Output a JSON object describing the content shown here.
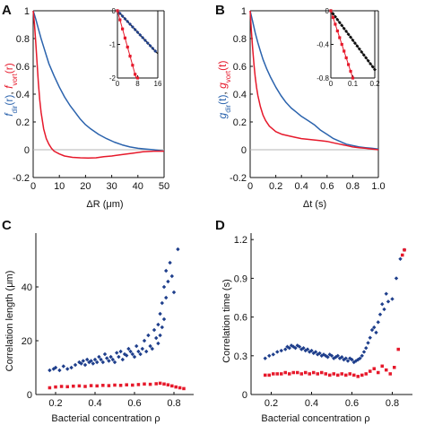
{
  "colors": {
    "blue": "#2b63ad",
    "red": "#e6192b",
    "navy": "#1f3f8c",
    "black": "#111111",
    "zero": "#b5b5b5"
  },
  "chart_data": [
    {
      "panel": "A",
      "type": "line",
      "xlabel": "ΔR (μm)",
      "ylabel_blue": "f_dir(r)",
      "ylabel_red": "f_vort(r)",
      "ylabel_blue_main": "f",
      "ylabel_blue_sub": "dir",
      "ylabel_blue_arg": "(r)",
      "ylabel_sep": ", ",
      "ylabel_red_main": "f",
      "ylabel_red_sub": "vort",
      "ylabel_red_arg": "(r)",
      "xlim": [
        0,
        50
      ],
      "ylim": [
        -0.2,
        1.0
      ],
      "xticks": [
        "0",
        "10",
        "20",
        "30",
        "40",
        "50"
      ],
      "yticks": [
        "-0.2",
        "0",
        "0.2",
        "0.4",
        "0.6",
        "0.8",
        "1"
      ],
      "series": [
        {
          "color": "blue",
          "x": [
            0,
            1,
            2,
            3,
            4,
            5,
            6,
            8,
            10,
            12,
            14,
            16,
            18,
            20,
            22,
            25,
            28,
            31,
            34,
            37,
            40,
            43,
            46,
            48,
            50
          ],
          "y": [
            1.0,
            0.94,
            0.87,
            0.8,
            0.74,
            0.68,
            0.62,
            0.53,
            0.45,
            0.38,
            0.32,
            0.27,
            0.22,
            0.18,
            0.15,
            0.11,
            0.08,
            0.055,
            0.035,
            0.02,
            0.01,
            0.005,
            0.0,
            -0.005,
            -0.01
          ]
        },
        {
          "color": "red",
          "x": [
            0,
            0.5,
            1,
            1.5,
            2,
            2.5,
            3,
            4,
            5,
            6,
            7,
            8,
            10,
            12,
            15,
            18,
            21,
            24,
            27,
            30,
            34,
            38,
            42,
            46,
            50
          ],
          "y": [
            1.0,
            0.9,
            0.77,
            0.62,
            0.48,
            0.36,
            0.27,
            0.15,
            0.08,
            0.04,
            0.01,
            -0.01,
            -0.03,
            -0.045,
            -0.055,
            -0.058,
            -0.06,
            -0.058,
            -0.05,
            -0.045,
            -0.035,
            -0.025,
            -0.015,
            -0.01,
            -0.01
          ]
        }
      ],
      "inset": {
        "xlim": [
          0,
          16
        ],
        "ylim": [
          -2,
          0
        ],
        "xticks": [
          "0",
          "8",
          "16"
        ],
        "yticks": [
          "-2",
          "-1",
          "0"
        ],
        "series": [
          {
            "color": "navy",
            "marker": "diamond",
            "x": [
              0,
              1,
              2,
              3,
              4,
              5,
              6,
              7,
              8,
              9,
              10,
              11,
              12,
              13,
              14,
              15
            ],
            "y": [
              0.0,
              -0.08,
              -0.16,
              -0.24,
              -0.32,
              -0.4,
              -0.48,
              -0.56,
              -0.64,
              -0.72,
              -0.8,
              -0.88,
              -0.96,
              -1.04,
              -1.12,
              -1.2
            ]
          },
          {
            "color": "red",
            "marker": "square",
            "x": [
              0,
              1,
              2,
              3,
              4,
              5,
              6,
              7,
              8
            ],
            "y": [
              0.0,
              -0.27,
              -0.54,
              -0.81,
              -1.08,
              -1.35,
              -1.62,
              -1.89,
              -2.0
            ]
          }
        ],
        "fit_lines": [
          {
            "color": "black",
            "x": [
              0,
              16
            ],
            "y": [
              0.0,
              -1.28
            ]
          },
          {
            "color": "red",
            "x": [
              0,
              7.4
            ],
            "y": [
              0.0,
              -2.0
            ]
          }
        ]
      }
    },
    {
      "panel": "B",
      "type": "line",
      "xlabel": "Δt (s)",
      "ylabel_blue": "g_dir(t)",
      "ylabel_red": "g_vort(t)",
      "ylabel_blue_main": "g",
      "ylabel_blue_sub": "dir",
      "ylabel_blue_arg": "(t)",
      "ylabel_sep": ", ",
      "ylabel_red_main": "g",
      "ylabel_red_sub": "vort",
      "ylabel_red_arg": "(t)",
      "xlim": [
        0,
        1.0
      ],
      "ylim": [
        -0.2,
        1.0
      ],
      "xticks": [
        "0",
        "0.2",
        "0.4",
        "0.6",
        "0.8",
        "1.0"
      ],
      "yticks": [
        "-0.2",
        "0",
        "0.2",
        "0.4",
        "0.6",
        "0.8",
        "1"
      ],
      "series": [
        {
          "color": "blue",
          "x": [
            0,
            0.02,
            0.04,
            0.06,
            0.08,
            0.1,
            0.13,
            0.16,
            0.2,
            0.24,
            0.28,
            0.32,
            0.36,
            0.4,
            0.45,
            0.5,
            0.55,
            0.6,
            0.65,
            0.7,
            0.75,
            0.8,
            0.85,
            0.9,
            0.95,
            1.0
          ],
          "y": [
            1.0,
            0.92,
            0.84,
            0.77,
            0.71,
            0.65,
            0.58,
            0.52,
            0.45,
            0.39,
            0.34,
            0.3,
            0.27,
            0.24,
            0.21,
            0.18,
            0.14,
            0.11,
            0.08,
            0.06,
            0.04,
            0.03,
            0.02,
            0.015,
            0.01,
            0.005
          ]
        },
        {
          "color": "red",
          "x": [
            0,
            0.01,
            0.02,
            0.03,
            0.04,
            0.05,
            0.06,
            0.08,
            0.1,
            0.12,
            0.15,
            0.2,
            0.25,
            0.3,
            0.35,
            0.4,
            0.45,
            0.5,
            0.55,
            0.6,
            0.65,
            0.7,
            0.75,
            0.8,
            0.85,
            0.9,
            0.95,
            1.0
          ],
          "y": [
            1.0,
            0.85,
            0.72,
            0.61,
            0.52,
            0.45,
            0.39,
            0.31,
            0.25,
            0.21,
            0.17,
            0.13,
            0.11,
            0.1,
            0.09,
            0.08,
            0.075,
            0.07,
            0.065,
            0.06,
            0.05,
            0.04,
            0.03,
            0.02,
            0.015,
            0.01,
            0.005,
            0.0
          ]
        }
      ],
      "inset": {
        "xlim": [
          0,
          0.2
        ],
        "ylim": [
          -0.8,
          0
        ],
        "xticks": [
          "0",
          "0.1",
          "0.2"
        ],
        "yticks": [
          "-0.8",
          "-0.4",
          "0"
        ],
        "series": [
          {
            "color": "black",
            "marker": "diamond",
            "x": [
              0,
              0.01,
              0.02,
              0.03,
              0.04,
              0.05,
              0.06,
              0.07,
              0.08,
              0.09,
              0.1,
              0.11,
              0.12,
              0.13,
              0.14,
              0.15,
              0.16,
              0.17,
              0.18,
              0.19,
              0.2
            ],
            "y": [
              0.0,
              -0.035,
              -0.07,
              -0.105,
              -0.14,
              -0.175,
              -0.21,
              -0.245,
              -0.28,
              -0.315,
              -0.35,
              -0.385,
              -0.42,
              -0.455,
              -0.49,
              -0.525,
              -0.56,
              -0.595,
              -0.63,
              -0.665,
              -0.7
            ]
          },
          {
            "color": "red",
            "marker": "square",
            "x": [
              0,
              0.01,
              0.02,
              0.03,
              0.04,
              0.05,
              0.06,
              0.07,
              0.08,
              0.09,
              0.1
            ],
            "y": [
              0.0,
              -0.08,
              -0.16,
              -0.24,
              -0.32,
              -0.4,
              -0.48,
              -0.56,
              -0.64,
              -0.72,
              -0.8
            ]
          }
        ],
        "fit_lines": [
          {
            "color": "black",
            "x": [
              0,
              0.2
            ],
            "y": [
              0.0,
              -0.7
            ]
          },
          {
            "color": "red",
            "x": [
              0,
              0.1
            ],
            "y": [
              0.0,
              -0.8
            ]
          }
        ]
      }
    },
    {
      "panel": "C",
      "type": "scatter",
      "xlabel": "Bacterial concentration ρ",
      "ylabel": "Correlation length (μm)",
      "xlim": [
        0.1,
        0.9
      ],
      "ylim": [
        0,
        60
      ],
      "xticks": [
        "0.2",
        "0.4",
        "0.6",
        "0.8"
      ],
      "yticks": [
        "0",
        "20",
        "40"
      ],
      "series": [
        {
          "color": "navy",
          "marker": "diamond",
          "x": [
            0.17,
            0.19,
            0.2,
            0.22,
            0.24,
            0.26,
            0.28,
            0.3,
            0.32,
            0.33,
            0.34,
            0.35,
            0.36,
            0.37,
            0.38,
            0.39,
            0.4,
            0.41,
            0.42,
            0.43,
            0.44,
            0.45,
            0.46,
            0.47,
            0.48,
            0.49,
            0.5,
            0.51,
            0.52,
            0.53,
            0.54,
            0.55,
            0.56,
            0.57,
            0.58,
            0.59,
            0.6,
            0.61,
            0.62,
            0.63,
            0.64,
            0.65,
            0.66,
            0.67,
            0.68,
            0.69,
            0.7,
            0.71,
            0.72,
            0.72,
            0.73,
            0.73,
            0.74,
            0.74,
            0.75,
            0.75,
            0.76,
            0.76,
            0.77,
            0.78,
            0.79,
            0.8,
            0.82
          ],
          "y": [
            9,
            9.5,
            10,
            9,
            10.5,
            9.5,
            10,
            11,
            12,
            11.5,
            12.5,
            11,
            13,
            12,
            12.5,
            11.5,
            13,
            12,
            14,
            13,
            12,
            15,
            13.5,
            12.5,
            14,
            13,
            12,
            15.5,
            14,
            16,
            13,
            15,
            14.5,
            17,
            16,
            15,
            14,
            18,
            16,
            15,
            17,
            20,
            16,
            22,
            18,
            17,
            24,
            21,
            19,
            26,
            30,
            22,
            25,
            34,
            28,
            40,
            36,
            46,
            42,
            49,
            44,
            38,
            54
          ]
        },
        {
          "color": "red",
          "marker": "square",
          "x": [
            0.17,
            0.2,
            0.23,
            0.26,
            0.29,
            0.32,
            0.35,
            0.38,
            0.41,
            0.44,
            0.47,
            0.5,
            0.53,
            0.56,
            0.59,
            0.62,
            0.65,
            0.68,
            0.71,
            0.73,
            0.75,
            0.77,
            0.79,
            0.81,
            0.83,
            0.85
          ],
          "y": [
            2.5,
            2.8,
            3.0,
            2.9,
            3.1,
            3.2,
            3.0,
            3.3,
            3.2,
            3.4,
            3.3,
            3.5,
            3.4,
            3.6,
            3.5,
            3.7,
            3.9,
            3.8,
            4.0,
            4.2,
            3.9,
            3.6,
            3.2,
            2.8,
            2.5,
            2.2
          ]
        }
      ]
    },
    {
      "panel": "D",
      "type": "scatter",
      "xlabel": "Bacterial concentration ρ",
      "ylabel": "Correlation time (s)",
      "xlim": [
        0.1,
        0.9
      ],
      "ylim": [
        0,
        1.25
      ],
      "xticks": [
        "0.2",
        "0.4",
        "0.6",
        "0.8"
      ],
      "yticks": [
        "0",
        "0.3",
        "0.6",
        "0.9",
        "1.2"
      ],
      "series": [
        {
          "color": "navy",
          "marker": "diamond",
          "x": [
            0.17,
            0.19,
            0.21,
            0.23,
            0.25,
            0.27,
            0.28,
            0.29,
            0.3,
            0.31,
            0.32,
            0.33,
            0.34,
            0.35,
            0.36,
            0.37,
            0.38,
            0.39,
            0.4,
            0.41,
            0.42,
            0.43,
            0.44,
            0.45,
            0.46,
            0.47,
            0.48,
            0.49,
            0.5,
            0.51,
            0.52,
            0.53,
            0.54,
            0.55,
            0.56,
            0.57,
            0.58,
            0.59,
            0.6,
            0.61,
            0.62,
            0.63,
            0.64,
            0.65,
            0.66,
            0.67,
            0.68,
            0.69,
            0.7,
            0.71,
            0.72,
            0.73,
            0.74,
            0.75,
            0.76,
            0.77,
            0.78,
            0.8,
            0.82,
            0.84,
            0.86
          ],
          "y": [
            0.28,
            0.3,
            0.31,
            0.33,
            0.34,
            0.35,
            0.37,
            0.36,
            0.38,
            0.37,
            0.36,
            0.38,
            0.37,
            0.35,
            0.36,
            0.34,
            0.35,
            0.33,
            0.34,
            0.32,
            0.33,
            0.31,
            0.32,
            0.3,
            0.31,
            0.3,
            0.29,
            0.31,
            0.3,
            0.28,
            0.29,
            0.3,
            0.28,
            0.29,
            0.27,
            0.28,
            0.26,
            0.28,
            0.27,
            0.25,
            0.26,
            0.27,
            0.28,
            0.3,
            0.33,
            0.36,
            0.4,
            0.44,
            0.5,
            0.52,
            0.48,
            0.56,
            0.62,
            0.7,
            0.66,
            0.78,
            0.72,
            0.74,
            0.9,
            1.05,
            1.12
          ]
        },
        {
          "color": "red",
          "marker": "square",
          "x": [
            0.17,
            0.19,
            0.21,
            0.23,
            0.25,
            0.27,
            0.29,
            0.31,
            0.33,
            0.35,
            0.37,
            0.39,
            0.41,
            0.43,
            0.45,
            0.47,
            0.49,
            0.51,
            0.53,
            0.55,
            0.57,
            0.59,
            0.61,
            0.63,
            0.65,
            0.67,
            0.69,
            0.71,
            0.73,
            0.75,
            0.77,
            0.79,
            0.81,
            0.83,
            0.85,
            0.86
          ],
          "y": [
            0.15,
            0.15,
            0.16,
            0.16,
            0.16,
            0.17,
            0.16,
            0.17,
            0.17,
            0.16,
            0.17,
            0.16,
            0.17,
            0.16,
            0.17,
            0.16,
            0.15,
            0.16,
            0.15,
            0.16,
            0.15,
            0.16,
            0.15,
            0.14,
            0.15,
            0.16,
            0.18,
            0.2,
            0.17,
            0.22,
            0.19,
            0.16,
            0.21,
            0.35,
            1.08,
            1.12
          ]
        }
      ]
    }
  ]
}
